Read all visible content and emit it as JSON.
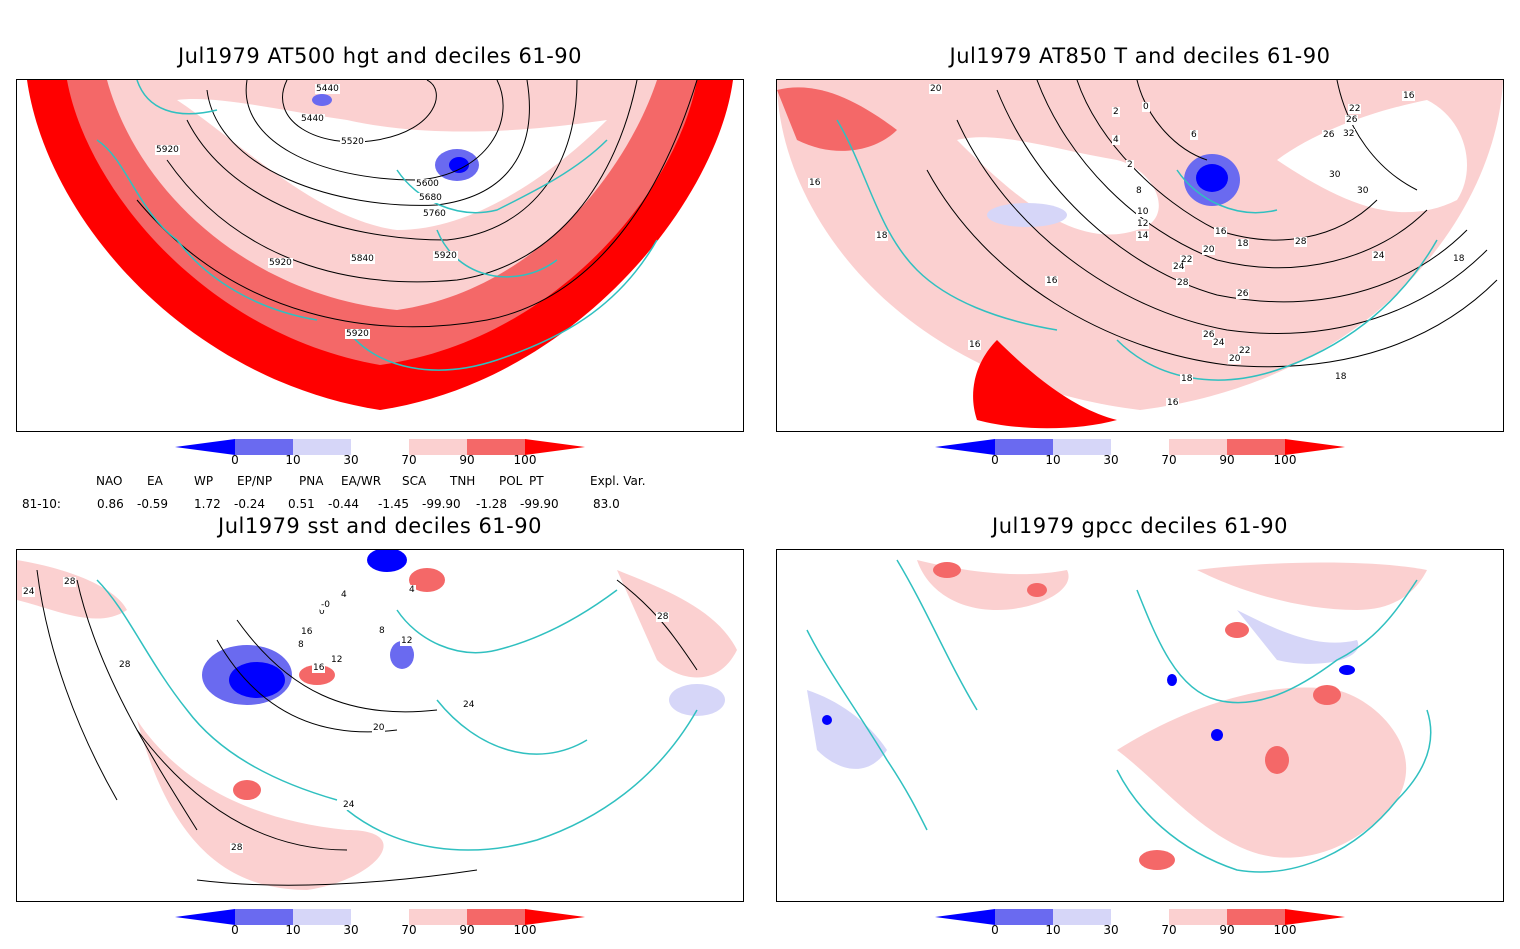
{
  "panels": [
    {
      "title": "Jul1979 AT500 hgt and deciles 61-90"
    },
    {
      "title": "Jul1979 AT850 T and deciles 61-90"
    },
    {
      "title": "Jul1979 sst and deciles 61-90"
    },
    {
      "title": "Jul1979 gpcc deciles 61-90"
    }
  ],
  "colorbar": {
    "labels": [
      "0",
      "10",
      "30",
      "70",
      "90",
      "100"
    ],
    "colors": [
      "#0000ff",
      "#6a6af0",
      "#d6d6f8",
      "#ffffff",
      "#fbd0d0",
      "#f46868",
      "#ff0000"
    ]
  },
  "indices": {
    "headers": [
      "NAO",
      "EA",
      "WP",
      "EP/NP",
      "PNA",
      "EA/WR",
      "SCA",
      "TNH",
      "POL",
      "PT",
      "Expl. Var."
    ],
    "row_label": "81-10:",
    "values": [
      "0.86",
      "-0.59",
      "1.72",
      "-0.24",
      "0.51",
      "-0.44",
      "-1.45",
      "-99.90",
      "-1.28",
      "-99.90",
      "83.0"
    ]
  },
  "contour_labels": {
    "p1": [
      "5440",
      "5440",
      "5520",
      "5920",
      "5600",
      "5680",
      "5760",
      "5840",
      "5920",
      "5920",
      "5920"
    ],
    "p2": [
      "20",
      "2",
      "0",
      "4",
      "2",
      "6",
      "8",
      "10",
      "12",
      "14",
      "16",
      "18",
      "20",
      "22",
      "24",
      "26",
      "28",
      "30",
      "30",
      "32",
      "18",
      "16",
      "18",
      "16",
      "16",
      "18",
      "16",
      "26",
      "24",
      "22",
      "20",
      "18",
      "26",
      "28",
      "24",
      "22",
      "26",
      "16",
      "18"
    ],
    "p3": [
      "28",
      "24",
      "28",
      "4",
      "0",
      "-0",
      "8",
      "16",
      "12",
      "16",
      "20",
      "24",
      "28",
      "24",
      "28",
      "8",
      "4",
      "12"
    ]
  },
  "colors": {
    "coast": "#30c0c0",
    "contour": "#000000",
    "grid": "#888888"
  }
}
